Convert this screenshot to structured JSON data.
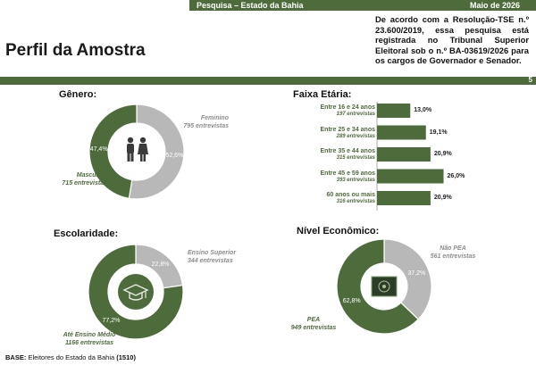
{
  "header": {
    "title": "Pesquisa – Estado da Bahia",
    "date": "Maio de 2026"
  },
  "page_title": "Perfil da Amostra",
  "registration_note": "De acordo com a Resolução-TSE n.º 23.600/2019, essa pesquisa está registrada no Tribunal Superior Eleitoral sob o n.º BA-03619/2026 para os cargos de Governador e Senador.",
  "page_number": "5",
  "footer": {
    "base_label": "BASE:",
    "base_text": "Eleitores do Estado da Bahia",
    "base_count": "(1510)"
  },
  "colors": {
    "green": "#4e6b3c",
    "grey": "#b8b8b8",
    "bar": "#4e6b3c"
  },
  "chart_data": [
    {
      "type": "pie",
      "title": "Gênero:",
      "icon": "people-icon",
      "slices": [
        {
          "name": "Feminino",
          "count_label": "795 entrevistas",
          "value": 52.6,
          "pct_label": "52,6%",
          "color": "#b8b8b8"
        },
        {
          "name": "Masculino",
          "count_label": "715 entrevistas",
          "value": 47.4,
          "pct_label": "47,4%",
          "color": "#4e6b3c"
        }
      ]
    },
    {
      "type": "bar",
      "title": "Faixa Etária:",
      "xlim": [
        0,
        30
      ],
      "categories": [
        "Entre 16 e 24 anos",
        "Entre 25 e 34 anos",
        "Entre 35 e 44 anos",
        "Entre 45 e 59 anos",
        "60 anos ou mais"
      ],
      "counts": [
        "197 entrevistas",
        "289 entrevistas",
        "315 entrevistas",
        "393 entrevistas",
        "316 entrevistas"
      ],
      "values": [
        13.0,
        19.1,
        20.9,
        26.0,
        20.9
      ],
      "value_labels": [
        "13,0%",
        "19,1%",
        "20,9%",
        "26,0%",
        "20,9%"
      ]
    },
    {
      "type": "pie",
      "title": "Escolaridade:",
      "icon": "graduation-cap-icon",
      "slices": [
        {
          "name": "Ensino Superior",
          "count_label": "344 entrevistas",
          "value": 22.8,
          "pct_label": "22,8%",
          "color": "#b8b8b8"
        },
        {
          "name": "Até Ensino Médio",
          "count_label": "1166 entrevistas",
          "value": 77.2,
          "pct_label": "77,2%",
          "color": "#4e6b3c"
        }
      ]
    },
    {
      "type": "pie",
      "title": "Nível Econômico:",
      "icon": "money-icon",
      "slices": [
        {
          "name": "Não PEA",
          "count_label": "561 entrevistas",
          "value": 37.2,
          "pct_label": "37,2%",
          "color": "#b8b8b8"
        },
        {
          "name": "PEA",
          "count_label": "949 entrevistas",
          "value": 62.8,
          "pct_label": "62,8%",
          "color": "#4e6b3c"
        }
      ]
    }
  ]
}
